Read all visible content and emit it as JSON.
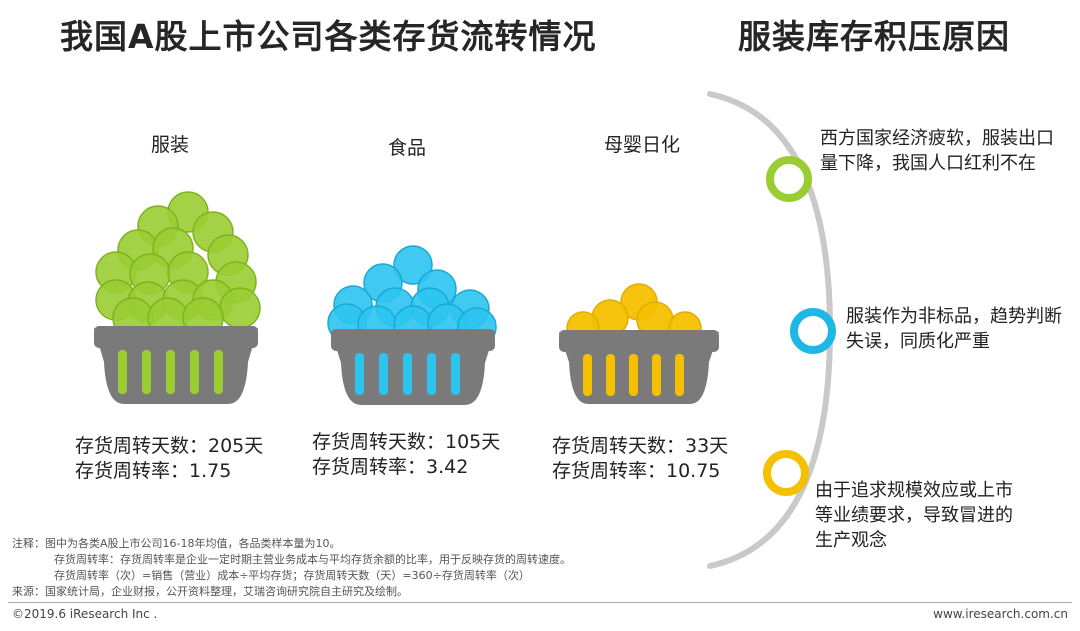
{
  "titles": {
    "left": "我国A股上市公司各类存货流转情况",
    "right": "服装库存积压原因"
  },
  "categories": [
    {
      "label": "服装",
      "days_line": "存货周转天数：205天",
      "rate_line": "存货周转率：1.75",
      "color": "#9acd32"
    },
    {
      "label": "食品",
      "days_line": "存货周转天数：105天",
      "rate_line": "存货周转率：3.42",
      "color": "#2cc4ef"
    },
    {
      "label": "母婴日化",
      "days_line": "存货周转天数：33天",
      "rate_line": "存货周转率：10.75",
      "color": "#f5c000"
    }
  ],
  "basket_color": "#7a7a7a",
  "reasons": [
    {
      "text": "西方国家经济疲软，服装出口量下降，我国人口红利不在",
      "color": "#9acd32"
    },
    {
      "text": "服装作为非标品，趋势判断失误，同质化严重",
      "color": "#1fb8e6"
    },
    {
      "text": "由于追求规模效应或上市等业绩要求，导致冒进的生产观念",
      "color": "#f5c000"
    }
  ],
  "notes": [
    "注释：图中为各类A股上市公司16-18年均值，各品类样本量为10。",
    "存货周转率：存货周转率是企业一定时期主营业务成本与平均存货余额的比率，用于反映存货的周转速度。",
    "存货周转率（次）=销售（营业）成本÷平均存货；存货周转天数（天）=360÷存货周转率（次）",
    "来源：国家统计局，企业财报，公开资料整理，艾瑞咨询研究院自主研究及绘制。"
  ],
  "footer": {
    "left": "©2019.6 iResearch Inc .",
    "right": "www.iresearch.com.cn"
  }
}
